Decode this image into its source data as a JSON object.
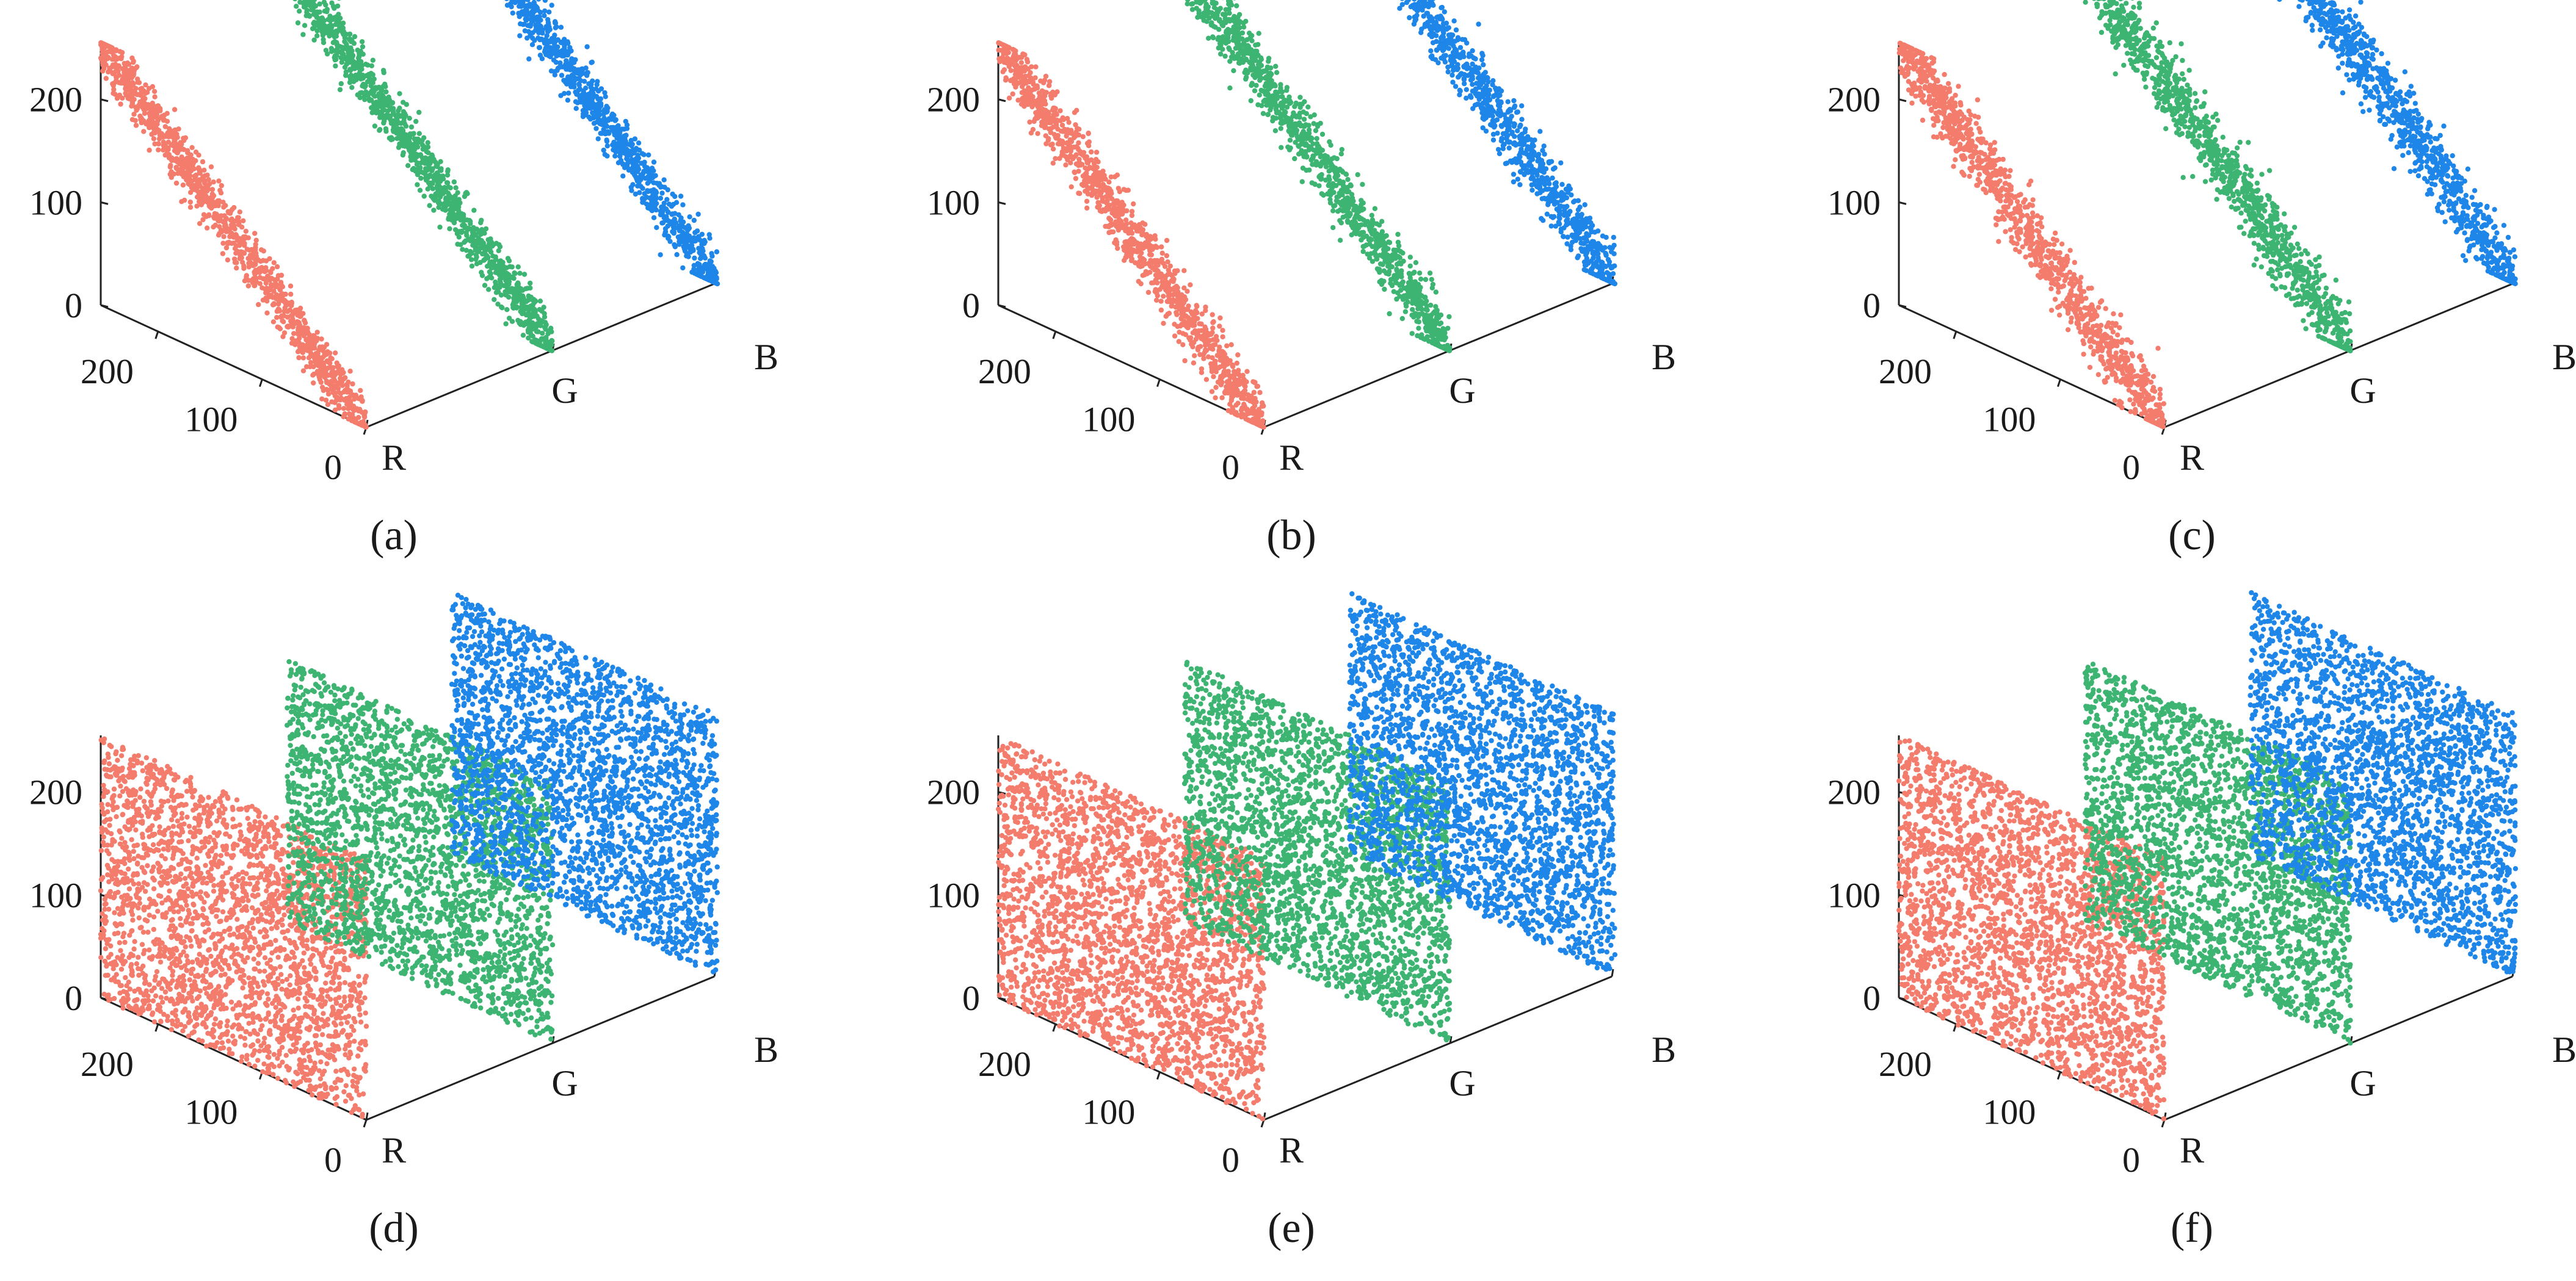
{
  "figure": {
    "background": "#ffffff"
  },
  "colors": {
    "R": "#F47C6C",
    "G": "#3DB472",
    "B": "#1E86E8"
  },
  "chart_data": [
    {
      "type": "scatter",
      "caption": "(a)",
      "distribution": "correlated",
      "axes": {
        "z_ticks": [
          "0",
          "100",
          "200"
        ],
        "depth_ticks": [
          "0",
          "100",
          "200"
        ],
        "axis_letters": [
          "R",
          "G",
          "B"
        ]
      },
      "zlim": [
        0,
        255
      ],
      "depthlim": [
        0,
        255
      ],
      "series": [
        {
          "name": "R",
          "value_range": [
            0,
            255
          ],
          "trend": "descending"
        },
        {
          "name": "G",
          "value_range": [
            0,
            255
          ],
          "trend": "descending"
        },
        {
          "name": "B",
          "value_range": [
            0,
            255
          ],
          "trend": "descending"
        }
      ]
    },
    {
      "type": "scatter",
      "caption": "(b)",
      "distribution": "correlated",
      "axes": {
        "z_ticks": [
          "0",
          "100",
          "200"
        ],
        "depth_ticks": [
          "0",
          "100",
          "200"
        ],
        "axis_letters": [
          "R",
          "G",
          "B"
        ]
      },
      "zlim": [
        0,
        255
      ],
      "depthlim": [
        0,
        255
      ],
      "series": [
        {
          "name": "R",
          "value_range": [
            0,
            255
          ],
          "trend": "descending"
        },
        {
          "name": "G",
          "value_range": [
            0,
            255
          ],
          "trend": "descending"
        },
        {
          "name": "B",
          "value_range": [
            0,
            255
          ],
          "trend": "descending"
        }
      ]
    },
    {
      "type": "scatter",
      "caption": "(c)",
      "distribution": "correlated",
      "axes": {
        "z_ticks": [
          "0",
          "100",
          "200"
        ],
        "depth_ticks": [
          "0",
          "100",
          "200"
        ],
        "axis_letters": [
          "R",
          "G",
          "B"
        ]
      },
      "zlim": [
        0,
        255
      ],
      "depthlim": [
        0,
        255
      ],
      "series": [
        {
          "name": "R",
          "value_range": [
            0,
            255
          ],
          "trend": "descending"
        },
        {
          "name": "G",
          "value_range": [
            0,
            255
          ],
          "trend": "descending"
        },
        {
          "name": "B",
          "value_range": [
            0,
            255
          ],
          "trend": "descending"
        }
      ]
    },
    {
      "type": "scatter",
      "caption": "(d)",
      "distribution": "uniform",
      "axes": {
        "z_ticks": [
          "0",
          "100",
          "200"
        ],
        "depth_ticks": [
          "0",
          "100",
          "200"
        ],
        "axis_letters": [
          "R",
          "G",
          "B"
        ]
      },
      "zlim": [
        0,
        255
      ],
      "depthlim": [
        0,
        255
      ],
      "series": [
        {
          "name": "R",
          "value_range": [
            0,
            255
          ],
          "trend": "uniform"
        },
        {
          "name": "G",
          "value_range": [
            0,
            255
          ],
          "trend": "uniform"
        },
        {
          "name": "B",
          "value_range": [
            0,
            255
          ],
          "trend": "uniform"
        }
      ]
    },
    {
      "type": "scatter",
      "caption": "(e)",
      "distribution": "uniform",
      "axes": {
        "z_ticks": [
          "0",
          "100",
          "200"
        ],
        "depth_ticks": [
          "0",
          "100",
          "200"
        ],
        "axis_letters": [
          "R",
          "G",
          "B"
        ]
      },
      "zlim": [
        0,
        255
      ],
      "depthlim": [
        0,
        255
      ],
      "series": [
        {
          "name": "R",
          "value_range": [
            0,
            255
          ],
          "trend": "uniform"
        },
        {
          "name": "G",
          "value_range": [
            0,
            255
          ],
          "trend": "uniform"
        },
        {
          "name": "B",
          "value_range": [
            0,
            255
          ],
          "trend": "uniform"
        }
      ]
    },
    {
      "type": "scatter",
      "caption": "(f)",
      "distribution": "uniform",
      "axes": {
        "z_ticks": [
          "0",
          "100",
          "200"
        ],
        "depth_ticks": [
          "0",
          "100",
          "200"
        ],
        "axis_letters": [
          "R",
          "G",
          "B"
        ]
      },
      "zlim": [
        0,
        255
      ],
      "depthlim": [
        0,
        255
      ],
      "series": [
        {
          "name": "R",
          "value_range": [
            0,
            255
          ],
          "trend": "uniform"
        },
        {
          "name": "G",
          "value_range": [
            0,
            255
          ],
          "trend": "uniform"
        },
        {
          "name": "B",
          "value_range": [
            0,
            255
          ],
          "trend": "uniform"
        }
      ]
    }
  ]
}
